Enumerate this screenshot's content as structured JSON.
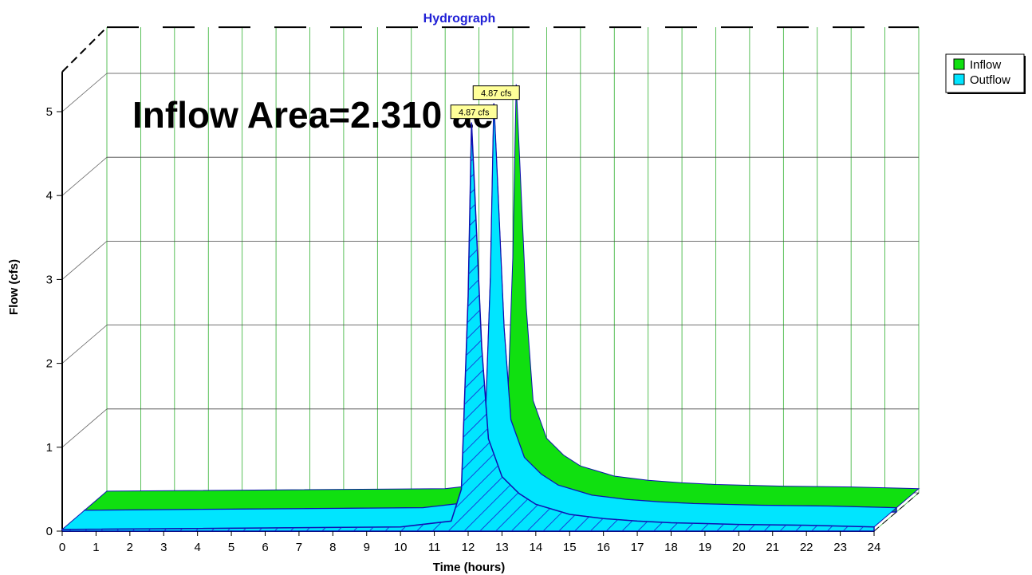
{
  "chart_data": {
    "type": "area",
    "title": "Hydrograph",
    "xlabel": "Time  (hours)",
    "ylabel": "Flow  (cfs)",
    "xlim": [
      0,
      24
    ],
    "ylim": [
      0,
      5
    ],
    "x_ticks": [
      0,
      1,
      2,
      3,
      4,
      5,
      6,
      7,
      8,
      9,
      10,
      11,
      12,
      13,
      14,
      15,
      16,
      17,
      18,
      19,
      20,
      21,
      22,
      23,
      24
    ],
    "y_ticks": [
      0,
      1,
      2,
      3,
      4,
      5
    ],
    "grid": true,
    "view": "3d",
    "legend": {
      "placement": "top-right",
      "entries": [
        "Inflow",
        "Outflow"
      ]
    },
    "annotation": "Inflow Area=2.310 ac",
    "series": [
      {
        "name": "Inflow",
        "color": "#10e010",
        "x": [
          0,
          10,
          11.5,
          11.8,
          12.0,
          12.1,
          12.2,
          12.4,
          12.6,
          13.0,
          13.5,
          14.0,
          15.0,
          16.0,
          17.0,
          18.0,
          20.0,
          22.0,
          24.0
        ],
        "values": [
          0.02,
          0.05,
          0.12,
          0.5,
          2.8,
          4.87,
          4.0,
          2.2,
          1.1,
          0.65,
          0.45,
          0.32,
          0.2,
          0.15,
          0.12,
          0.1,
          0.08,
          0.07,
          0.05
        ],
        "peak_label": "4.87 cfs"
      },
      {
        "name": "Outflow",
        "color": "#00e5ff",
        "x": [
          0,
          10,
          11.5,
          11.8,
          12.0,
          12.1,
          12.2,
          12.4,
          12.6,
          13.0,
          13.5,
          14.0,
          15.0,
          16.0,
          17.0,
          18.0,
          20.0,
          22.0,
          24.0
        ],
        "values": [
          0.02,
          0.05,
          0.12,
          0.5,
          2.8,
          4.87,
          4.0,
          2.2,
          1.1,
          0.65,
          0.45,
          0.32,
          0.2,
          0.15,
          0.12,
          0.1,
          0.08,
          0.07,
          0.05
        ],
        "peak_label": "4.87 cfs"
      }
    ]
  }
}
